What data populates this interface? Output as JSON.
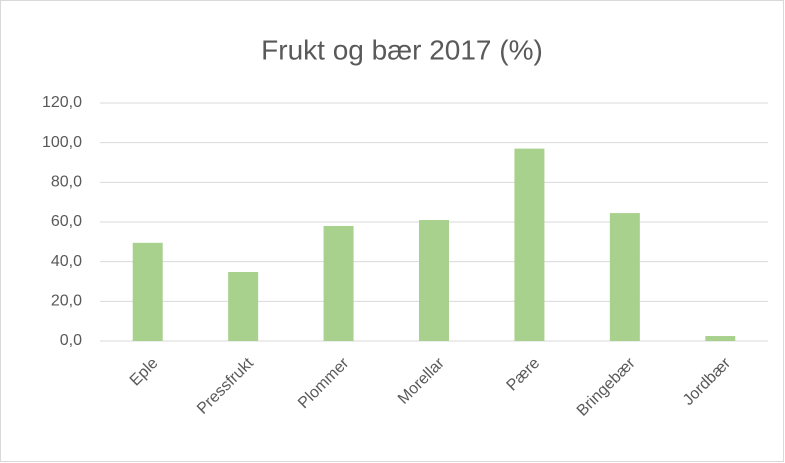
{
  "chart_data": {
    "type": "bar",
    "title": "Frukt og bær 2017 (%)",
    "categories": [
      "Eple",
      "Pressfrukt",
      "Plommer",
      "Morellar",
      "Pære",
      "Bringebær",
      "Jordbær"
    ],
    "values": [
      49.5,
      34.8,
      58,
      61,
      97,
      64.5,
      2.5
    ],
    "color": "#a9d18e",
    "ylim": [
      0,
      120
    ],
    "yticks": [
      {
        "value": 0,
        "label": "0,0"
      },
      {
        "value": 20,
        "label": "20,0"
      },
      {
        "value": 40,
        "label": "40,0"
      },
      {
        "value": 60,
        "label": "60,0"
      },
      {
        "value": 80,
        "label": "80,0"
      },
      {
        "value": 100,
        "label": "100,0"
      },
      {
        "value": 120,
        "label": "120,0"
      }
    ],
    "grid": true
  }
}
